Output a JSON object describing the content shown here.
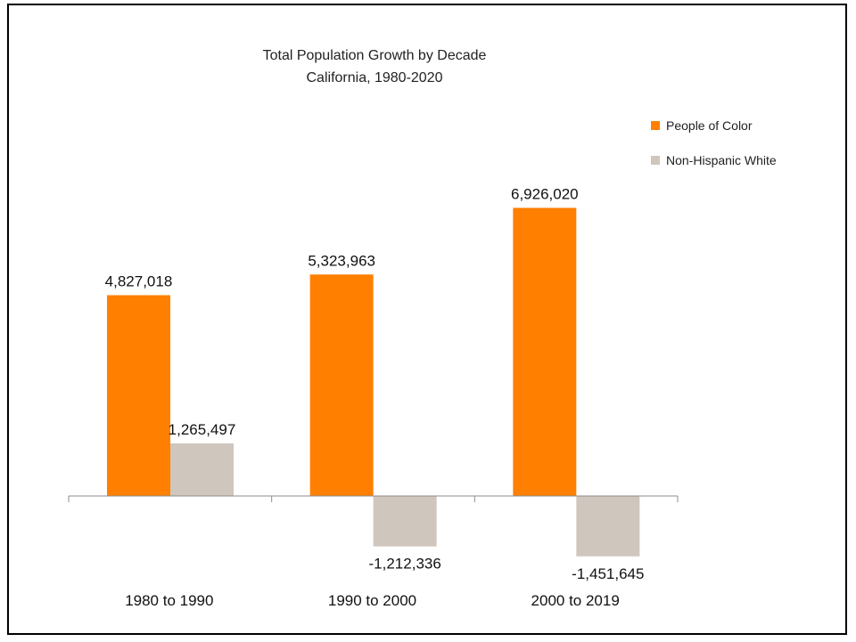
{
  "chart_data": {
    "type": "bar",
    "title": "Total Population Growth by Decade",
    "subtitle": "California, 1980-2020",
    "categories": [
      "1980 to 1990",
      "1990 to 2000",
      "2000 to 2019"
    ],
    "series": [
      {
        "name": "People of Color",
        "values": [
          4827018,
          5323963,
          6926020
        ],
        "labels": [
          "4,827,018",
          "5,323,963",
          "6,926,020"
        ],
        "color": "#FF7F00"
      },
      {
        "name": "Non-Hispanic White",
        "values": [
          1265497,
          -1212336,
          -1451645
        ],
        "labels": [
          "1,265,497",
          "-1,212,336",
          "-1,451,645"
        ],
        "color": "#CFC6BE"
      }
    ],
    "xlabel": "",
    "ylabel": "",
    "ylim": [
      -2000000,
      8000000
    ],
    "grid": false,
    "legend": "top-right"
  }
}
